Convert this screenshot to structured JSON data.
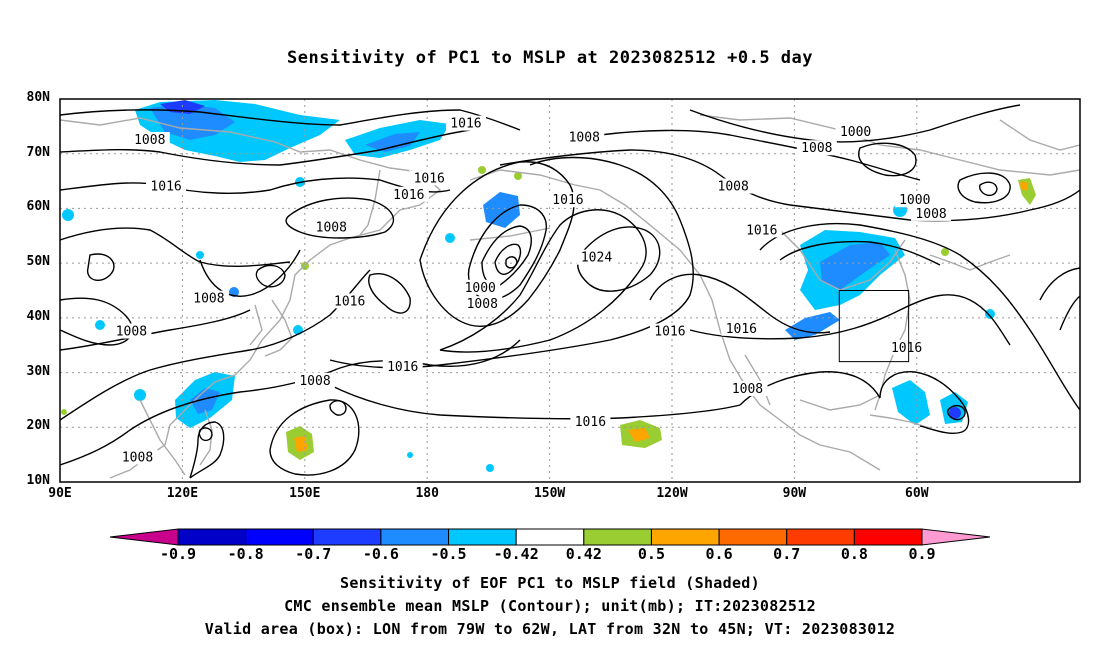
{
  "title": "Sensitivity of PC1 to MSLP at 2023082512 +0.5 day",
  "lat_labels": [
    "80N",
    "70N",
    "60N",
    "50N",
    "40N",
    "30N",
    "20N",
    "10N"
  ],
  "lon_labels": [
    "90E",
    "120E",
    "150E",
    "180",
    "150W",
    "120W",
    "90W",
    "60W"
  ],
  "contour_labels": [
    {
      "value": "1016",
      "lon": -170.5,
      "lat": 75.5
    },
    {
      "value": "1008",
      "lon": -141.5,
      "lat": 73.0
    },
    {
      "value": "1000",
      "lon": -75.0,
      "lat": 74.0
    },
    {
      "value": "1008",
      "lon": -84.5,
      "lat": 71.0
    },
    {
      "value": "1008",
      "lon": 112.0,
      "lat": 72.5
    },
    {
      "value": "1016",
      "lon": 116.0,
      "lat": 64.0
    },
    {
      "value": "1016",
      "lon": -179.5,
      "lat": 65.5
    },
    {
      "value": "1016",
      "lon": 175.5,
      "lat": 62.5
    },
    {
      "value": "1016",
      "lon": -145.5,
      "lat": 61.5
    },
    {
      "value": "1008",
      "lon": -105.0,
      "lat": 64.0
    },
    {
      "value": "1016",
      "lon": -98.0,
      "lat": 56.0
    },
    {
      "value": "1000",
      "lon": -60.5,
      "lat": 61.5
    },
    {
      "value": "1008",
      "lon": -56.5,
      "lat": 59.0
    },
    {
      "value": "1008",
      "lon": 156.5,
      "lat": 56.5
    },
    {
      "value": "1024",
      "lon": -138.5,
      "lat": 51.0
    },
    {
      "value": "1000",
      "lon": -167.0,
      "lat": 45.5
    },
    {
      "value": "1008",
      "lon": -166.5,
      "lat": 42.5
    },
    {
      "value": "1008",
      "lon": 126.5,
      "lat": 43.5
    },
    {
      "value": "1016",
      "lon": 161.0,
      "lat": 43.0
    },
    {
      "value": "1008",
      "lon": 107.5,
      "lat": 37.5
    },
    {
      "value": "1016",
      "lon": -120.5,
      "lat": 37.5
    },
    {
      "value": "1016",
      "lon": -103.0,
      "lat": 38.0
    },
    {
      "value": "1016",
      "lon": -62.5,
      "lat": 34.5
    },
    {
      "value": "1016",
      "lon": 174.0,
      "lat": 31.0
    },
    {
      "value": "1008",
      "lon": 152.5,
      "lat": 28.5
    },
    {
      "value": "1008",
      "lon": -101.5,
      "lat": 27.0
    },
    {
      "value": "1016",
      "lon": -140.0,
      "lat": 21.0
    },
    {
      "value": "1008",
      "lon": 109.0,
      "lat": 14.5
    }
  ],
  "colorbar": {
    "labels": [
      "-0.9",
      "-0.8",
      "-0.7",
      "-0.6",
      "-0.5",
      "-0.42",
      "0.42",
      "0.5",
      "0.6",
      "0.7",
      "0.8",
      "0.9"
    ],
    "colors": [
      "#7a00a8",
      "#0000c8",
      "#0000ff",
      "#1e3cff",
      "#1e8cff",
      "#00c8ff",
      "#ffffff",
      "#9acd32",
      "#ffa500",
      "#ff6a00",
      "#ff3c00",
      "#ff0000",
      "#ff9ad2"
    ],
    "low_arrow_color": "#c8008c",
    "high_arrow_color": "#ff9ad2"
  },
  "valid_box": {
    "lon_min": -79,
    "lon_max": -62,
    "lat_min": 32,
    "lat_max": 45
  },
  "captions": [
    "Sensitivity of EOF PC1 to MSLP field (Shaded)",
    "CMC ensemble mean MSLP (Contour); unit(mb); IT:2023082512",
    "Valid area (box): LON from 79W to 62W, LAT from 32N to 45N; VT: 2023083012"
  ]
}
